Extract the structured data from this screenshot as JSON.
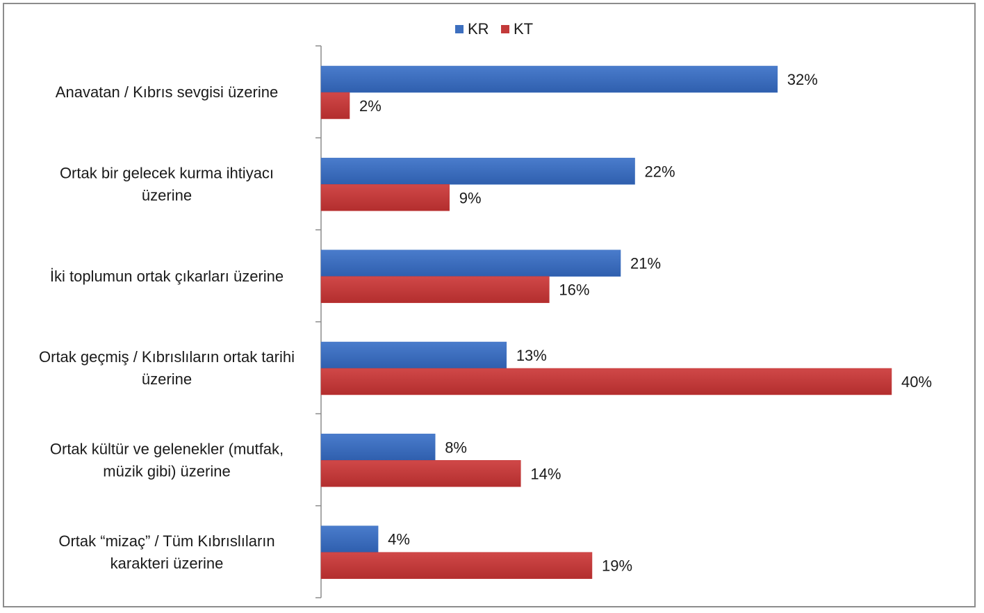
{
  "chart_data": {
    "type": "bar",
    "orientation": "horizontal",
    "categories": [
      [
        "Anavatan / Kıbrıs sevgisi üzerine"
      ],
      [
        "Ortak bir gelecek kurma ihtiyacı",
        "üzerine"
      ],
      [
        "İki toplumun ortak çıkarları üzerine"
      ],
      [
        "Ortak geçmiş / Kıbrıslıların ortak tarihi",
        "üzerine"
      ],
      [
        "Ortak kültür ve gelenekler (mutfak,",
        "müzik gibi) üzerine"
      ],
      [
        "Ortak “mizaç” / Tüm Kıbrıslıların",
        "karakteri üzerine"
      ]
    ],
    "series": [
      {
        "name": "KR",
        "color": "#3d6fbf",
        "values": [
          32,
          22,
          21,
          13,
          8,
          4
        ],
        "labels": [
          "32%",
          "22%",
          "21%",
          "13%",
          "8%",
          "4%"
        ]
      },
      {
        "name": "KT",
        "color": "#c33a3a",
        "values": [
          2,
          9,
          16,
          40,
          14,
          19
        ],
        "labels": [
          "2%",
          "9%",
          "16%",
          "40%",
          "14%",
          "19%"
        ]
      }
    ],
    "xlim": [
      0,
      40
    ],
    "legend_position": "top",
    "grid": false
  }
}
